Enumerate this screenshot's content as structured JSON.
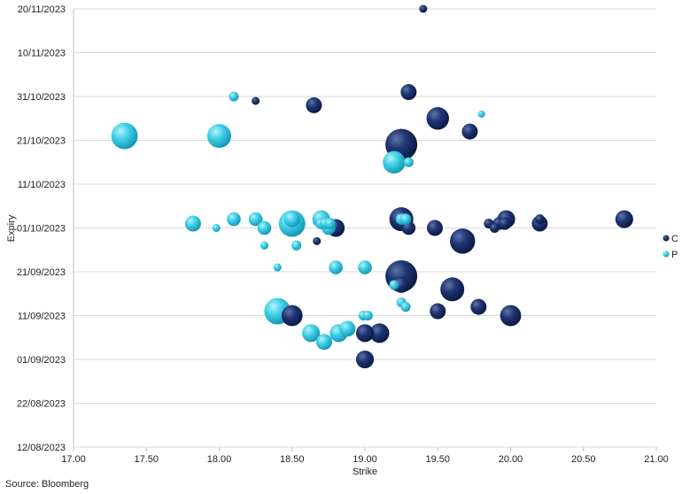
{
  "chart_data": {
    "type": "scatter",
    "xlabel": "Strike",
    "ylabel": "Expiry",
    "xlim": [
      17.0,
      21.0
    ],
    "x_ticks": [
      "17.00",
      "17.50",
      "18.00",
      "18.50",
      "19.00",
      "19.50",
      "20.00",
      "20.50",
      "21.00"
    ],
    "y_ticks": [
      "12/08/2023",
      "22/08/2023",
      "01/09/2023",
      "11/09/2023",
      "21/09/2023",
      "01/10/2023",
      "11/10/2023",
      "21/10/2023",
      "31/10/2023",
      "10/11/2023",
      "20/11/2023"
    ],
    "ylim": [
      "2023-08-12",
      "2023-11-20"
    ],
    "grid": "horizontal",
    "legend_position": "right",
    "series": [
      {
        "name": "C",
        "color": "#14295e",
        "points": [
          {
            "strike": 19.4,
            "expiry": "2023-11-20",
            "size": 1
          },
          {
            "strike": 19.3,
            "expiry": "2023-11-01",
            "size": 4
          },
          {
            "strike": 18.25,
            "expiry": "2023-10-30",
            "size": 1
          },
          {
            "strike": 18.65,
            "expiry": "2023-10-29",
            "size": 4
          },
          {
            "strike": 19.5,
            "expiry": "2023-10-26",
            "size": 8
          },
          {
            "strike": 19.72,
            "expiry": "2023-10-23",
            "size": 4
          },
          {
            "strike": 19.25,
            "expiry": "2023-10-20",
            "size": 16
          },
          {
            "strike": 19.25,
            "expiry": "2023-10-03",
            "size": 9
          },
          {
            "strike": 19.3,
            "expiry": "2023-10-01",
            "size": 3
          },
          {
            "strike": 18.8,
            "expiry": "2023-10-01",
            "size": 5
          },
          {
            "strike": 19.48,
            "expiry": "2023-10-01",
            "size": 4
          },
          {
            "strike": 19.97,
            "expiry": "2023-10-03",
            "size": 5
          },
          {
            "strike": 19.85,
            "expiry": "2023-10-02",
            "size": 1.5
          },
          {
            "strike": 19.89,
            "expiry": "2023-10-01",
            "size": 1.5
          },
          {
            "strike": 19.92,
            "expiry": "2023-10-02",
            "size": 2.5
          },
          {
            "strike": 19.96,
            "expiry": "2023-10-02",
            "size": 2.5
          },
          {
            "strike": 20.2,
            "expiry": "2023-10-03",
            "size": 1.5
          },
          {
            "strike": 20.2,
            "expiry": "2023-10-02",
            "size": 4
          },
          {
            "strike": 20.78,
            "expiry": "2023-10-03",
            "size": 5
          },
          {
            "strike": 18.67,
            "expiry": "2023-09-28",
            "size": 1
          },
          {
            "strike": 19.67,
            "expiry": "2023-09-28",
            "size": 10
          },
          {
            "strike": 19.25,
            "expiry": "2023-09-20",
            "size": 16
          },
          {
            "strike": 19.25,
            "expiry": "2023-09-18",
            "size": 4
          },
          {
            "strike": 19.6,
            "expiry": "2023-09-17",
            "size": 9
          },
          {
            "strike": 19.78,
            "expiry": "2023-09-13",
            "size": 4
          },
          {
            "strike": 18.5,
            "expiry": "2023-09-11",
            "size": 7
          },
          {
            "strike": 19.5,
            "expiry": "2023-09-12",
            "size": 4
          },
          {
            "strike": 20.0,
            "expiry": "2023-09-11",
            "size": 7
          },
          {
            "strike": 19.0,
            "expiry": "2023-09-07",
            "size": 5
          },
          {
            "strike": 19.1,
            "expiry": "2023-09-07",
            "size": 6
          },
          {
            "strike": 19.0,
            "expiry": "2023-09-01",
            "size": 5
          }
        ]
      },
      {
        "name": "P",
        "color": "#2ec4de",
        "points": [
          {
            "strike": 18.1,
            "expiry": "2023-10-31",
            "size": 1.5
          },
          {
            "strike": 19.8,
            "expiry": "2023-10-27",
            "size": 0.8
          },
          {
            "strike": 17.35,
            "expiry": "2023-10-22",
            "size": 11
          },
          {
            "strike": 18.0,
            "expiry": "2023-10-22",
            "size": 9
          },
          {
            "strike": 19.2,
            "expiry": "2023-10-16",
            "size": 8
          },
          {
            "strike": 19.3,
            "expiry": "2023-10-16",
            "size": 1.5
          },
          {
            "strike": 17.82,
            "expiry": "2023-10-02",
            "size": 4
          },
          {
            "strike": 17.98,
            "expiry": "2023-10-01",
            "size": 1
          },
          {
            "strike": 18.1,
            "expiry": "2023-10-03",
            "size": 3
          },
          {
            "strike": 18.25,
            "expiry": "2023-10-03",
            "size": 3
          },
          {
            "strike": 18.31,
            "expiry": "2023-10-01",
            "size": 3
          },
          {
            "strike": 18.5,
            "expiry": "2023-10-03",
            "size": 4
          },
          {
            "strike": 18.5,
            "expiry": "2023-10-02",
            "size": 11
          },
          {
            "strike": 18.7,
            "expiry": "2023-10-03",
            "size": 5
          },
          {
            "strike": 18.7,
            "expiry": "2023-10-02",
            "size": 2
          },
          {
            "strike": 18.73,
            "expiry": "2023-10-02",
            "size": 2
          },
          {
            "strike": 18.76,
            "expiry": "2023-10-02",
            "size": 2
          },
          {
            "strike": 18.75,
            "expiry": "2023-10-01",
            "size": 3
          },
          {
            "strike": 19.25,
            "expiry": "2023-10-03",
            "size": 2
          },
          {
            "strike": 19.28,
            "expiry": "2023-10-03",
            "size": 2
          },
          {
            "strike": 18.53,
            "expiry": "2023-09-27",
            "size": 1.5
          },
          {
            "strike": 18.31,
            "expiry": "2023-09-27",
            "size": 1
          },
          {
            "strike": 18.4,
            "expiry": "2023-09-22",
            "size": 1
          },
          {
            "strike": 18.8,
            "expiry": "2023-09-22",
            "size": 3
          },
          {
            "strike": 19.0,
            "expiry": "2023-09-22",
            "size": 3
          },
          {
            "strike": 19.2,
            "expiry": "2023-09-18",
            "size": 1.5
          },
          {
            "strike": 19.25,
            "expiry": "2023-09-14",
            "size": 1.5
          },
          {
            "strike": 19.28,
            "expiry": "2023-09-13",
            "size": 1.5
          },
          {
            "strike": 18.4,
            "expiry": "2023-09-12",
            "size": 11
          },
          {
            "strike": 18.99,
            "expiry": "2023-09-11",
            "size": 1.5
          },
          {
            "strike": 19.02,
            "expiry": "2023-09-11",
            "size": 1.5
          },
          {
            "strike": 18.88,
            "expiry": "2023-09-08",
            "size": 4
          },
          {
            "strike": 18.82,
            "expiry": "2023-09-07",
            "size": 5
          },
          {
            "strike": 18.63,
            "expiry": "2023-09-07",
            "size": 5
          },
          {
            "strike": 18.72,
            "expiry": "2023-09-05",
            "size": 4
          }
        ]
      }
    ]
  },
  "footer": {
    "source": "Source: Bloomberg"
  }
}
